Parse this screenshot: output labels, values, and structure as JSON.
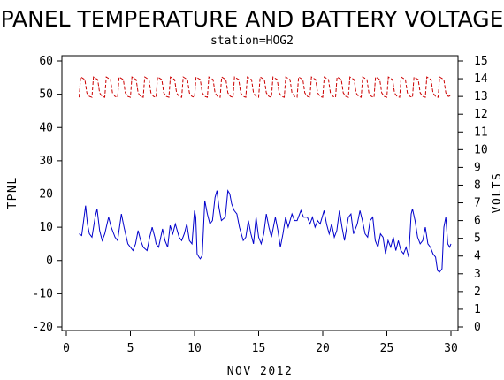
{
  "chart_data": {
    "type": "line",
    "title": "PANEL TEMPERATURE AND BATTERY VOLTAGE",
    "subtitle": "station=HOG2",
    "xlabel": "NOV 2012",
    "ylabel_left": "TPNL",
    "ylabel_right": "VOLTS",
    "xlim": [
      0,
      30
    ],
    "ylim_left": [
      -20,
      60
    ],
    "ylim_right": [
      0,
      15
    ],
    "x_ticks": [
      0,
      5,
      10,
      15,
      20,
      25,
      30
    ],
    "y_ticks_left": [
      -20,
      -10,
      0,
      10,
      20,
      30,
      40,
      50,
      60
    ],
    "y_ticks_right": [
      0,
      1,
      2,
      3,
      4,
      5,
      6,
      7,
      8,
      9,
      10,
      11,
      12,
      13,
      14,
      15
    ],
    "grid": false,
    "series": [
      {
        "axis": "left",
        "color": "#0000cc",
        "style": "solid",
        "points": [
          [
            1.0,
            8
          ],
          [
            1.2,
            7.5
          ],
          [
            1.35,
            12
          ],
          [
            1.5,
            16.5
          ],
          [
            1.65,
            11
          ],
          [
            1.8,
            8
          ],
          [
            2.0,
            7
          ],
          [
            2.25,
            13
          ],
          [
            2.4,
            15.5
          ],
          [
            2.6,
            9
          ],
          [
            2.8,
            6
          ],
          [
            3.0,
            8
          ],
          [
            3.3,
            13
          ],
          [
            3.5,
            10
          ],
          [
            3.8,
            7
          ],
          [
            4.0,
            6
          ],
          [
            4.3,
            14
          ],
          [
            4.5,
            10
          ],
          [
            4.8,
            5
          ],
          [
            5.0,
            4
          ],
          [
            5.2,
            3
          ],
          [
            5.4,
            5
          ],
          [
            5.6,
            9
          ],
          [
            5.8,
            6
          ],
          [
            6.0,
            4
          ],
          [
            6.3,
            3
          ],
          [
            6.5,
            7
          ],
          [
            6.7,
            10
          ],
          [
            6.9,
            7
          ],
          [
            7.0,
            5
          ],
          [
            7.2,
            4
          ],
          [
            7.5,
            9.5
          ],
          [
            7.7,
            6
          ],
          [
            7.9,
            4
          ],
          [
            8.1,
            10.5
          ],
          [
            8.3,
            8
          ],
          [
            8.5,
            11
          ],
          [
            8.8,
            7
          ],
          [
            9.0,
            6
          ],
          [
            9.2,
            8
          ],
          [
            9.4,
            11
          ],
          [
            9.6,
            6
          ],
          [
            9.8,
            5
          ],
          [
            10.0,
            15
          ],
          [
            10.1,
            13
          ],
          [
            10.2,
            2
          ],
          [
            10.35,
            1
          ],
          [
            10.45,
            0.5
          ],
          [
            10.6,
            1.5
          ],
          [
            10.8,
            18
          ],
          [
            11.0,
            14
          ],
          [
            11.2,
            11
          ],
          [
            11.4,
            12
          ],
          [
            11.6,
            19
          ],
          [
            11.75,
            21
          ],
          [
            11.9,
            16
          ],
          [
            12.1,
            12
          ],
          [
            12.4,
            13
          ],
          [
            12.6,
            21
          ],
          [
            12.75,
            20
          ],
          [
            12.9,
            17
          ],
          [
            13.1,
            15
          ],
          [
            13.3,
            14
          ],
          [
            13.5,
            10
          ],
          [
            13.8,
            6
          ],
          [
            14.0,
            7
          ],
          [
            14.2,
            12
          ],
          [
            14.4,
            8
          ],
          [
            14.6,
            5
          ],
          [
            14.8,
            13
          ],
          [
            15.0,
            7
          ],
          [
            15.2,
            5
          ],
          [
            15.4,
            8
          ],
          [
            15.6,
            14
          ],
          [
            15.8,
            10
          ],
          [
            16.0,
            7
          ],
          [
            16.3,
            13
          ],
          [
            16.5,
            9
          ],
          [
            16.7,
            4
          ],
          [
            16.9,
            8
          ],
          [
            17.1,
            13
          ],
          [
            17.3,
            10
          ],
          [
            17.6,
            14
          ],
          [
            17.8,
            12
          ],
          [
            18.0,
            12
          ],
          [
            18.3,
            15
          ],
          [
            18.5,
            13
          ],
          [
            18.8,
            13
          ],
          [
            19.0,
            11
          ],
          [
            19.2,
            13
          ],
          [
            19.4,
            10
          ],
          [
            19.6,
            12
          ],
          [
            19.8,
            11
          ],
          [
            20.1,
            15
          ],
          [
            20.3,
            11
          ],
          [
            20.5,
            8
          ],
          [
            20.7,
            11
          ],
          [
            20.9,
            7
          ],
          [
            21.1,
            9
          ],
          [
            21.3,
            15
          ],
          [
            21.5,
            10
          ],
          [
            21.7,
            6
          ],
          [
            22.0,
            13
          ],
          [
            22.2,
            14
          ],
          [
            22.4,
            8
          ],
          [
            22.7,
            11
          ],
          [
            22.9,
            15
          ],
          [
            23.1,
            12
          ],
          [
            23.3,
            8
          ],
          [
            23.5,
            7
          ],
          [
            23.7,
            12
          ],
          [
            23.9,
            13
          ],
          [
            24.1,
            6
          ],
          [
            24.3,
            4
          ],
          [
            24.5,
            8
          ],
          [
            24.7,
            7
          ],
          [
            24.9,
            2
          ],
          [
            25.1,
            6
          ],
          [
            25.3,
            4
          ],
          [
            25.5,
            7
          ],
          [
            25.7,
            3
          ],
          [
            25.9,
            6
          ],
          [
            26.1,
            3
          ],
          [
            26.3,
            2
          ],
          [
            26.5,
            4
          ],
          [
            26.7,
            1
          ],
          [
            26.9,
            14
          ],
          [
            27.0,
            15.5
          ],
          [
            27.2,
            12
          ],
          [
            27.4,
            7
          ],
          [
            27.6,
            5
          ],
          [
            27.8,
            6
          ],
          [
            28.0,
            10
          ],
          [
            28.2,
            5
          ],
          [
            28.4,
            4
          ],
          [
            28.6,
            2
          ],
          [
            28.8,
            1
          ],
          [
            28.95,
            -3
          ],
          [
            29.1,
            -3.5
          ],
          [
            29.3,
            -2.5
          ],
          [
            29.45,
            10
          ],
          [
            29.6,
            13
          ],
          [
            29.75,
            5
          ],
          [
            29.9,
            4
          ],
          [
            30.0,
            5
          ]
        ]
      },
      {
        "axis": "right",
        "color": "#cc0000",
        "style": "dashed",
        "day_start": 1.0,
        "day_end": 30.0,
        "cycles_per_day": 1,
        "low": 12.95,
        "high": 14.1
      }
    ]
  }
}
